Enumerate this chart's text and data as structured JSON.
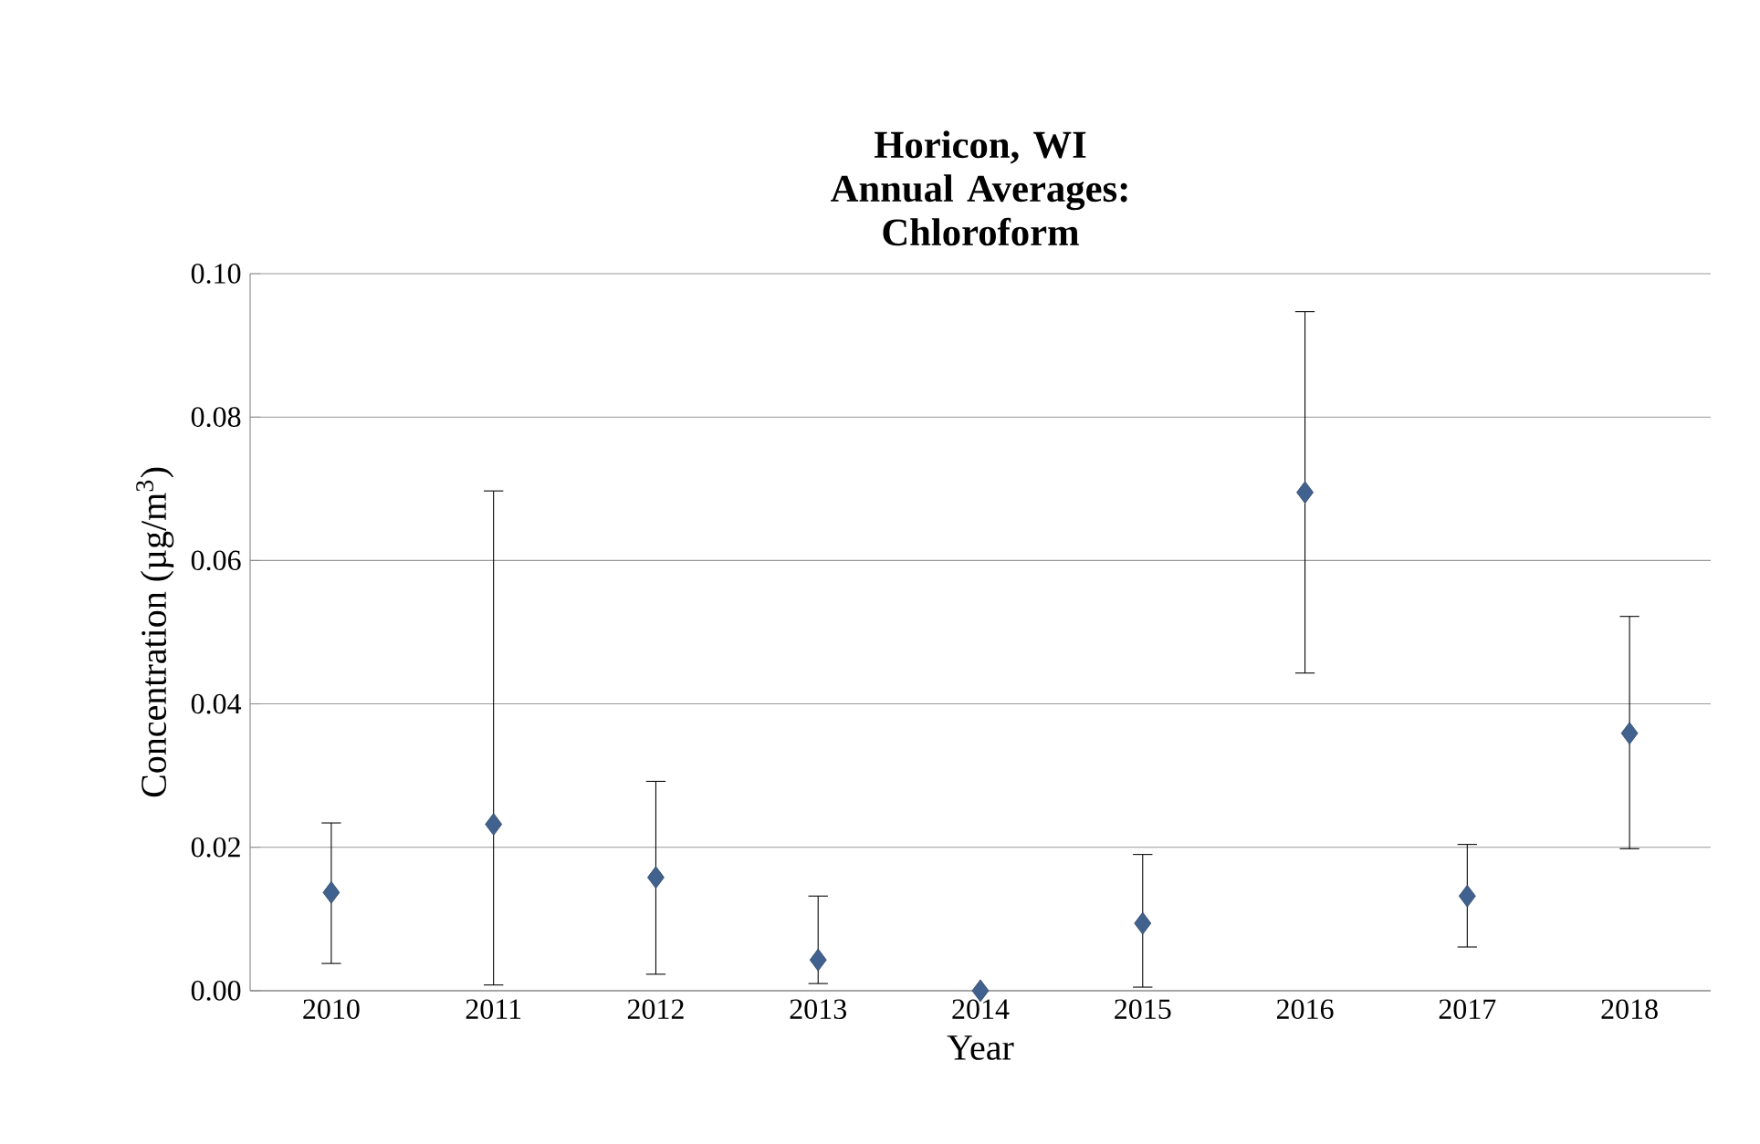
{
  "chart_data": {
    "type": "scatter",
    "title": "Horicon, WI Annual Averages: Chloroform",
    "xlabel": "Year",
    "ylabel": "Concentration (µg/m$^{3}$)",
    "categories": [
      "2010",
      "2011",
      "2012",
      "2013",
      "2014",
      "2015",
      "2016",
      "2017",
      "2018"
    ],
    "series": [
      {
        "color": "#41628f",
        "values": [
          0.0137,
          0.0232,
          0.0158,
          0.0043,
          0.0,
          0.0094,
          0.0695,
          0.0132,
          0.0359
        ],
        "errors": [
          [
            0.0038,
            0.0234
          ],
          [
            0.0008,
            0.0697
          ],
          [
            0.0023,
            0.0292
          ],
          [
            0.001,
            0.0132
          ],
          null,
          [
            0.0005,
            0.019
          ],
          [
            0.0443,
            0.0947
          ],
          [
            0.0061,
            0.0204
          ],
          [
            0.0198,
            0.0522
          ]
        ]
      }
    ],
    "ylim": [
      0,
      0.1
    ],
    "yticks": [
      {
        "value": 0,
        "label": "0.00"
      },
      {
        "value": 0.02,
        "label": "0.02"
      },
      {
        "value": 0.04,
        "label": "0.04"
      },
      {
        "value": 0.06,
        "label": "0.06"
      },
      {
        "value": 0.08,
        "label": "0.08"
      },
      {
        "value": 0.1,
        "label": "0.10"
      }
    ],
    "grid": "y",
    "marker": "diamond"
  }
}
